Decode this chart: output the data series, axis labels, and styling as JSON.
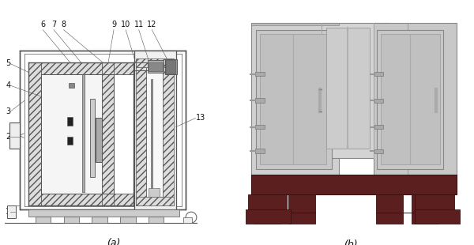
{
  "fig_width": 6.0,
  "fig_height": 3.1,
  "dpi": 100,
  "bg_color": "#ffffff",
  "label_a": "(a)",
  "label_b": "(b)",
  "caption_fontsize": 9,
  "ann_fontsize": 7,
  "lc": "#555555",
  "brown": "#5c1f1f",
  "gray_light": "#d4d4d4",
  "gray_mid": "#b8b8b8",
  "gray_dark": "#909090",
  "hatch_gray": "#cccccc",
  "white": "#ffffff",
  "black": "#111111"
}
